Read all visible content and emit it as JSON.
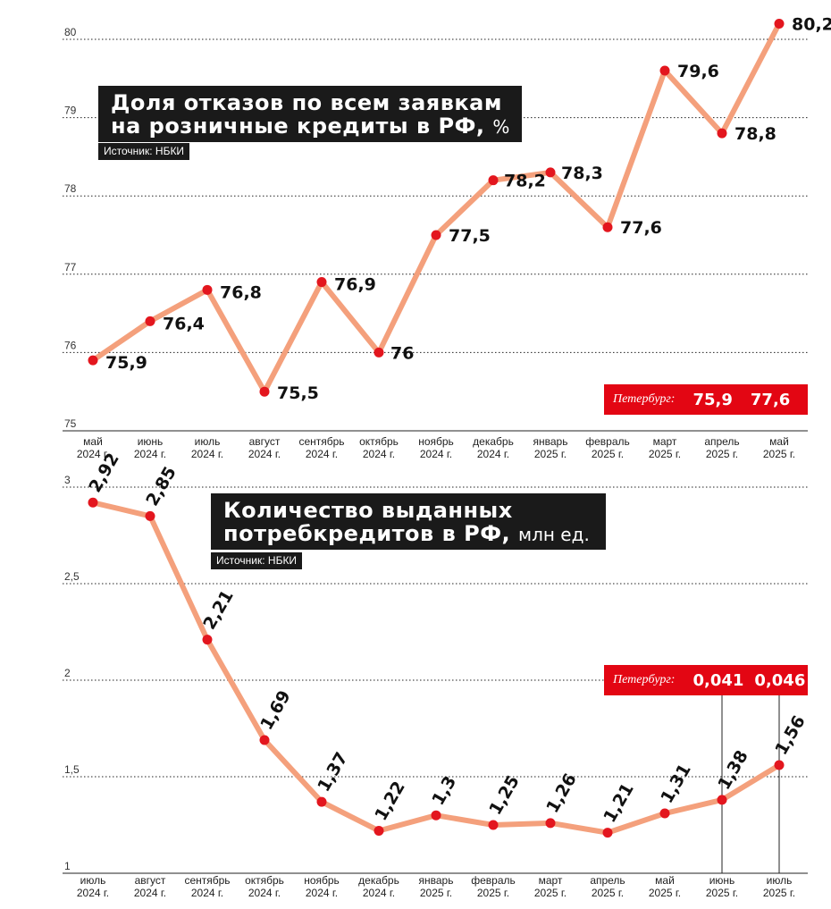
{
  "chart_data": [
    {
      "type": "line",
      "title": "Доля отказов по всем заявкам на розничные кредиты в РФ,",
      "title_lines": [
        "Доля отказов по всем заявкам",
        "на розничные кредиты в РФ,"
      ],
      "title_unit": "%",
      "source": "Источник: НБКИ",
      "categories": [
        [
          "май",
          "2024 г."
        ],
        [
          "июнь",
          "2024 г."
        ],
        [
          "июль",
          "2024 г."
        ],
        [
          "август",
          "2024 г."
        ],
        [
          "сентябрь",
          "2024 г."
        ],
        [
          "октябрь",
          "2024 г."
        ],
        [
          "ноябрь",
          "2024 г."
        ],
        [
          "декабрь",
          "2024 г."
        ],
        [
          "январь",
          "2025 г."
        ],
        [
          "февраль",
          "2025 г."
        ],
        [
          "март",
          "2025 г."
        ],
        [
          "апрель",
          "2025 г."
        ],
        [
          "май",
          "2025 г."
        ]
      ],
      "values": [
        75.9,
        76.4,
        76.8,
        75.5,
        76.9,
        76.0,
        77.5,
        78.2,
        78.3,
        77.6,
        79.6,
        78.8,
        80.2
      ],
      "value_labels": [
        "75,9",
        "76,4",
        "76,8",
        "75,5",
        "76,9",
        "76",
        "77,5",
        "78,2",
        "78,3",
        "77,6",
        "79,6",
        "78,8",
        "80,2"
      ],
      "ylim": [
        75,
        80
      ],
      "yticks": [
        "75",
        "76",
        "77",
        "78",
        "79",
        "80"
      ],
      "xlabel": "",
      "ylabel": "",
      "grid": true,
      "line_color": "#f4a07c",
      "marker_color": "#e3161e",
      "petersburg": {
        "label": "Петербург:",
        "values": [
          "75,9",
          "77,6"
        ]
      }
    },
    {
      "type": "line",
      "title": "Количество выданных потребкредитов в РФ,",
      "title_lines": [
        "Количество выданных",
        "потребкредитов в РФ,"
      ],
      "title_unit": "млн ед.",
      "source": "Источник: НБКИ",
      "categories": [
        [
          "июль",
          "2024 г."
        ],
        [
          "август",
          "2024 г."
        ],
        [
          "сентябрь",
          "2024 г."
        ],
        [
          "октябрь",
          "2024 г."
        ],
        [
          "ноябрь",
          "2024 г."
        ],
        [
          "декабрь",
          "2024 г."
        ],
        [
          "январь",
          "2025 г."
        ],
        [
          "февраль",
          "2025 г."
        ],
        [
          "март",
          "2025 г."
        ],
        [
          "апрель",
          "2025 г."
        ],
        [
          "май",
          "2025 г."
        ],
        [
          "июнь",
          "2025 г."
        ],
        [
          "июль",
          "2025 г."
        ]
      ],
      "values": [
        2.92,
        2.85,
        2.21,
        1.69,
        1.37,
        1.22,
        1.3,
        1.25,
        1.26,
        1.21,
        1.31,
        1.38,
        1.56
      ],
      "value_labels": [
        "2,92",
        "2,85",
        "2,21",
        "1,69",
        "1,37",
        "1,22",
        "1,3",
        "1,25",
        "1,26",
        "1,21",
        "1,31",
        "1,38",
        "1,56"
      ],
      "ylim": [
        1,
        3
      ],
      "yticks": [
        "1",
        "1,5",
        "2",
        "2,5",
        "3"
      ],
      "xlabel": "",
      "ylabel": "",
      "grid": true,
      "line_color": "#f4a07c",
      "marker_color": "#e3161e",
      "petersburg": {
        "label": "Петербург:",
        "values": [
          "0,041",
          "0,046"
        ]
      }
    }
  ]
}
